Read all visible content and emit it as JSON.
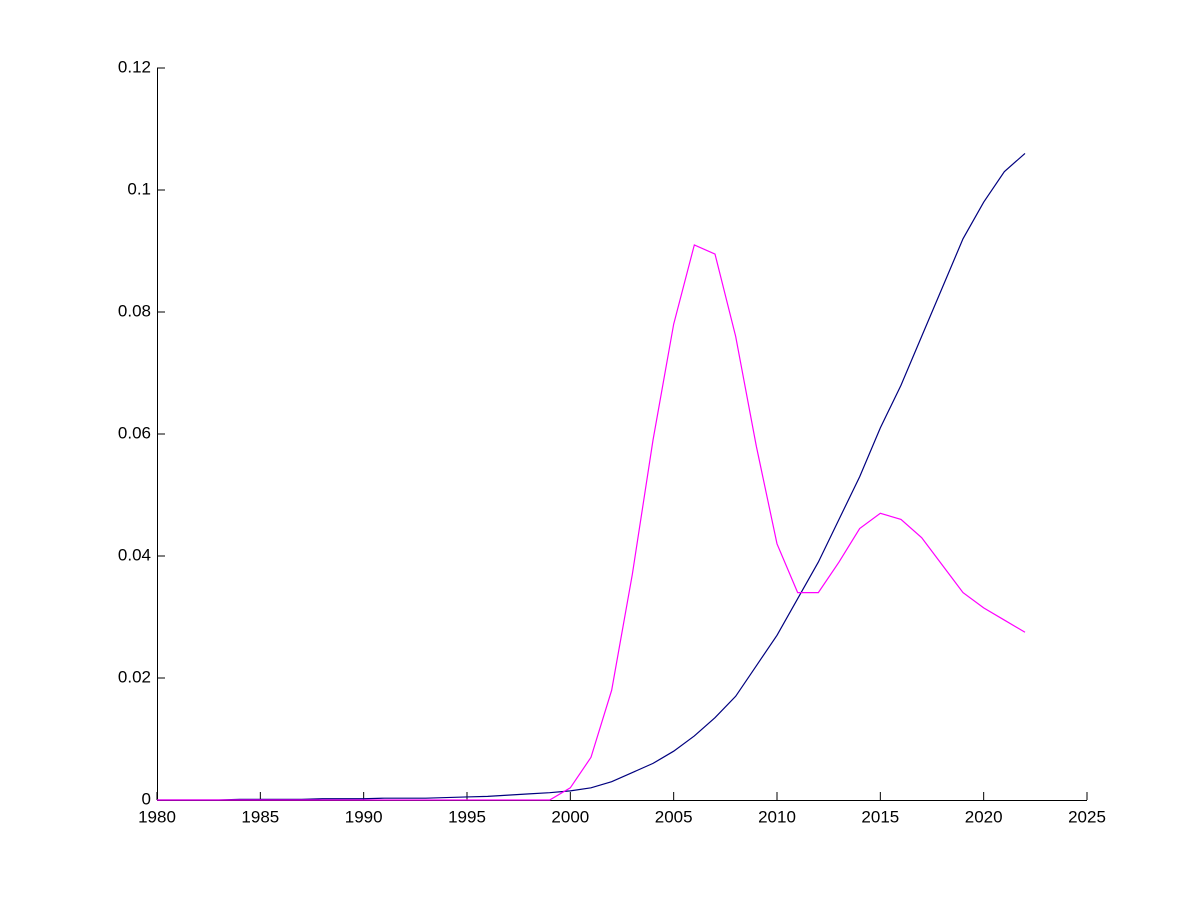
{
  "chart_data": {
    "type": "line",
    "x": [
      1980,
      1981,
      1982,
      1983,
      1984,
      1985,
      1986,
      1987,
      1988,
      1989,
      1990,
      1991,
      1992,
      1993,
      1994,
      1995,
      1996,
      1997,
      1998,
      1999,
      2000,
      2001,
      2002,
      2003,
      2004,
      2005,
      2006,
      2007,
      2008,
      2009,
      2010,
      2011,
      2012,
      2013,
      2014,
      2015,
      2016,
      2017,
      2018,
      2019,
      2020,
      2021,
      2022
    ],
    "series": [
      {
        "color": "#00007f",
        "values": [
          0,
          0,
          0,
          0,
          0.0001,
          0.0001,
          0.0001,
          0.0001,
          0.0002,
          0.0002,
          0.0002,
          0.0003,
          0.0003,
          0.0003,
          0.0004,
          0.0005,
          0.0006,
          0.0008,
          0.001,
          0.0012,
          0.0015,
          0.002,
          0.003,
          0.0045,
          0.006,
          0.008,
          0.0105,
          0.0135,
          0.017,
          0.022,
          0.027,
          0.033,
          0.039,
          0.046,
          0.053,
          0.061,
          0.068,
          0.076,
          0.084,
          0.092,
          0.098,
          0.103,
          0.106
        ]
      },
      {
        "color": "#ff00ff",
        "values": [
          0,
          0,
          0,
          0,
          0,
          0,
          0,
          0,
          0,
          0,
          0,
          0,
          0,
          0,
          0,
          0,
          0,
          0,
          0,
          0,
          0.002,
          0.007,
          0.018,
          0.037,
          0.059,
          0.078,
          0.091,
          0.0895,
          0.076,
          0.058,
          0.042,
          0.034,
          0.034,
          0.039,
          0.0445,
          0.047,
          0.046,
          0.043,
          0.0385,
          0.034,
          0.0315,
          0.0295,
          0.0275
        ]
      }
    ],
    "xlim": [
      1980,
      2025
    ],
    "xticks": [
      1980,
      1985,
      1990,
      1995,
      2000,
      2005,
      2010,
      2015,
      2020,
      2025
    ],
    "ylim": [
      0,
      0.12
    ],
    "yticks": [
      0,
      0.02,
      0.04,
      0.06,
      0.08,
      0.1,
      0.12
    ],
    "grid": false
  }
}
